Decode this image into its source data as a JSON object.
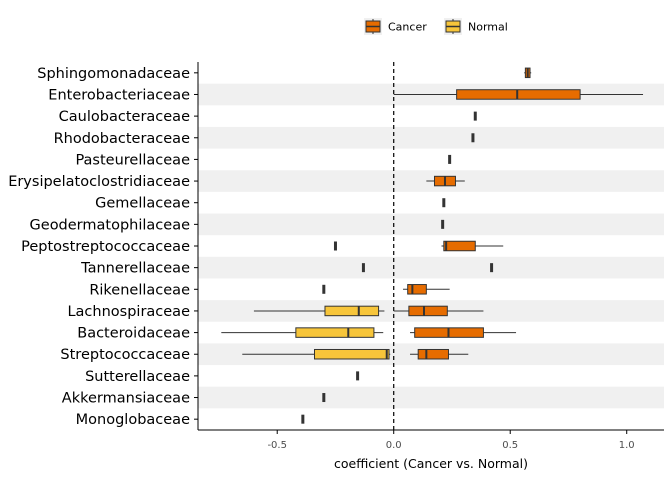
{
  "chart_data": {
    "type": "boxplot",
    "title": "",
    "xlabel": "coefficient (Cancer vs. Normal)",
    "ylabel": "",
    "xlim": [
      -0.84,
      1.16
    ],
    "x_ticks": [
      -0.5,
      0.0,
      0.5,
      1.0
    ],
    "x_tick_labels": [
      "-0.5",
      "0.0",
      "0.5",
      "1.0"
    ],
    "reference_line": 0,
    "grid": false,
    "row_banding": true,
    "legend_position": "top",
    "legend": [
      {
        "name": "Cancer",
        "color": "#E66C00"
      },
      {
        "name": "Normal",
        "color": "#F7C53A"
      }
    ],
    "categories": [
      "Sphingomonadaceae",
      "Enterobacteriaceae",
      "Caulobacteraceae",
      "Rhodobacteraceae",
      "Pasteurellaceae",
      "Erysipelatoclostridiaceae",
      "Gemellaceae",
      "Geodermatophilaceae",
      "Peptostreptococcaceae",
      "Tannerellaceae",
      "Rikenellaceae",
      "Lachnospiraceae",
      "Bacteroidaceae",
      "Streptococcaceae",
      "Sutterellaceae",
      "Akkermansiaceae",
      "Monoglobaceae"
    ],
    "series": [
      {
        "name": "Cancer",
        "boxes": [
          {
            "category": "Sphingomonadaceae",
            "min": 0.56,
            "q1": 0.565,
            "median": 0.575,
            "q3": 0.585,
            "max": 0.59
          },
          {
            "category": "Enterobacteriaceae",
            "min": 0.0,
            "q1": 0.27,
            "median": 0.53,
            "q3": 0.8,
            "max": 1.07
          },
          {
            "category": "Caulobacteraceae",
            "min": 0.35,
            "q1": 0.35,
            "median": 0.35,
            "q3": 0.35,
            "max": 0.35
          },
          {
            "category": "Rhodobacteraceae",
            "min": 0.34,
            "q1": 0.34,
            "median": 0.34,
            "q3": 0.34,
            "max": 0.34
          },
          {
            "category": "Pasteurellaceae",
            "min": 0.24,
            "q1": 0.24,
            "median": 0.24,
            "q3": 0.24,
            "max": 0.24
          },
          {
            "category": "Erysipelatoclostridiaceae",
            "min": 0.14,
            "q1": 0.175,
            "median": 0.22,
            "q3": 0.265,
            "max": 0.305
          },
          {
            "category": "Gemellaceae",
            "min": 0.215,
            "q1": 0.215,
            "median": 0.215,
            "q3": 0.215,
            "max": 0.215
          },
          {
            "category": "Geodermatophilaceae",
            "min": 0.21,
            "q1": 0.21,
            "median": 0.21,
            "q3": 0.21,
            "max": 0.21
          },
          {
            "category": "Peptostreptococcaceae",
            "min": 0.205,
            "q1": 0.215,
            "median": 0.225,
            "q3": 0.35,
            "max": 0.47
          },
          {
            "category": "Tannerellaceae",
            "min": 0.42,
            "q1": 0.42,
            "median": 0.42,
            "q3": 0.42,
            "max": 0.42
          },
          {
            "category": "Rikenellaceae",
            "min": 0.04,
            "q1": 0.06,
            "median": 0.08,
            "q3": 0.14,
            "max": 0.24
          },
          {
            "category": "Lachnospiraceae",
            "min": 0.0,
            "q1": 0.065,
            "median": 0.13,
            "q3": 0.23,
            "max": 0.385
          },
          {
            "category": "Bacteroidaceae",
            "min": 0.07,
            "q1": 0.09,
            "median": 0.235,
            "q3": 0.385,
            "max": 0.525
          },
          {
            "category": "Streptococcaceae",
            "min": 0.07,
            "q1": 0.105,
            "median": 0.14,
            "q3": 0.235,
            "max": 0.32
          }
        ]
      },
      {
        "name": "Normal",
        "boxes": [
          {
            "category": "Peptostreptococcaceae",
            "min": -0.25,
            "q1": -0.25,
            "median": -0.25,
            "q3": -0.25,
            "max": -0.25
          },
          {
            "category": "Tannerellaceae",
            "min": -0.13,
            "q1": -0.13,
            "median": -0.13,
            "q3": -0.13,
            "max": -0.13
          },
          {
            "category": "Rikenellaceae",
            "min": -0.3,
            "q1": -0.3,
            "median": -0.3,
            "q3": -0.3,
            "max": -0.3
          },
          {
            "category": "Lachnospiraceae",
            "min": -0.6,
            "q1": -0.295,
            "median": -0.15,
            "q3": -0.065,
            "max": -0.04
          },
          {
            "category": "Bacteroidaceae",
            "min": -0.74,
            "q1": -0.42,
            "median": -0.195,
            "q3": -0.085,
            "max": -0.045
          },
          {
            "category": "Streptococcaceae",
            "min": -0.65,
            "q1": -0.34,
            "median": -0.03,
            "q3": -0.02,
            "max": -0.015
          },
          {
            "category": "Sutterellaceae",
            "min": -0.155,
            "q1": -0.155,
            "median": -0.155,
            "q3": -0.155,
            "max": -0.155
          },
          {
            "category": "Akkermansiaceae",
            "min": -0.3,
            "q1": -0.3,
            "median": -0.3,
            "q3": -0.3,
            "max": -0.3
          },
          {
            "category": "Monoglobaceae",
            "min": -0.39,
            "q1": -0.39,
            "median": -0.39,
            "q3": -0.39,
            "max": -0.39
          }
        ]
      }
    ]
  }
}
